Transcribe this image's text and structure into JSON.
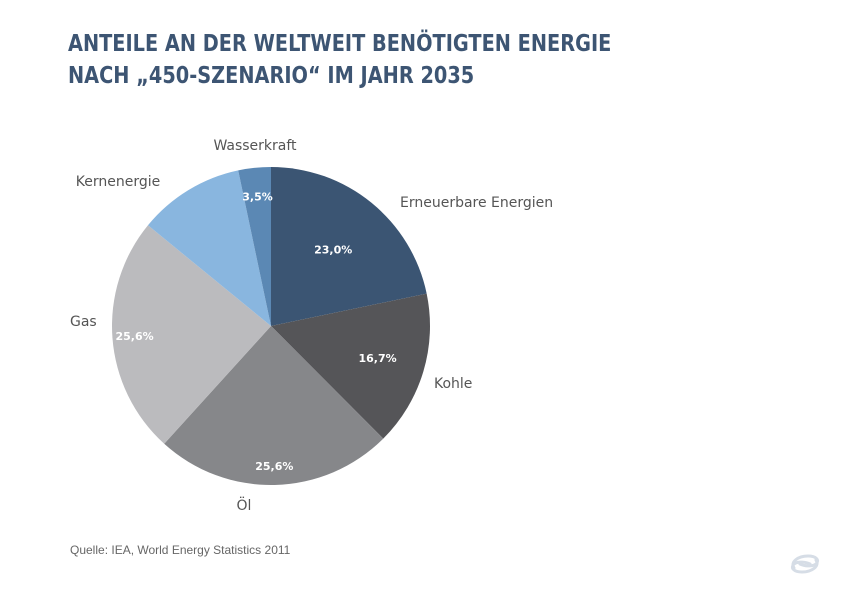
{
  "title_lines": [
    "ANTEILE AN DER WELTWEIT BENÖTIGTEN ENERGIE",
    "NACH „450-SZENARIO“ IM JAHR 2035"
  ],
  "source": "Quelle: IEA, World Energy Statistics 2011",
  "chart_data": {
    "type": "pie",
    "title": "ANTEILE AN DER WELTWEIT BENÖTIGTEN ENERGIE NACH „450-SZENARIO“ IM JAHR 2035",
    "start_angle": "12 o'clock",
    "direction": "clockwise",
    "slices": [
      {
        "name": "Erneuerbare Energien",
        "value": 23.0,
        "label": "23,0%",
        "color": "#3b5573"
      },
      {
        "name": "Kohle",
        "value": 16.7,
        "label": "16,7%",
        "color": "#555558"
      },
      {
        "name": "Öl",
        "value": 25.6,
        "label": "25,6%",
        "color": "#86878a"
      },
      {
        "name": "Gas",
        "value": 25.6,
        "label": "25,6%",
        "color": "#bbbbbe"
      },
      {
        "name": "Kernenergie",
        "value": 11.4,
        "label": "",
        "color": "#89b6df"
      },
      {
        "name": "Wasserkraft",
        "value": 3.5,
        "label": "3,5%",
        "color": "#5b88b4"
      }
    ]
  },
  "colors": {
    "title": "#3d5573",
    "category_label": "#555555",
    "value_label": "#ffffff",
    "source": "#666666",
    "logo": "#d6dde6"
  },
  "icons": {
    "logo": "brand-logo-icon"
  }
}
